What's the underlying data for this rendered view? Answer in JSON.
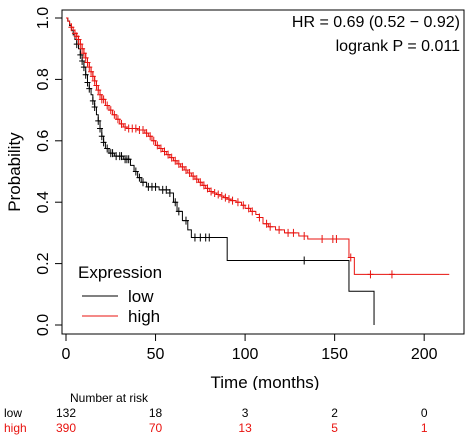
{
  "chart_data": {
    "type": "line",
    "title": "",
    "xlabel": "Time (months)",
    "ylabel": "Probability",
    "xlim": [
      0,
      220
    ],
    "ylim": [
      0,
      1.0
    ],
    "xticks": [
      0,
      50,
      100,
      150,
      200
    ],
    "yticks": [
      0.0,
      0.2,
      0.4,
      0.6,
      0.8,
      1.0
    ],
    "ytick_labels": [
      "0.0",
      "0.2",
      "0.4",
      "0.6",
      "0.8",
      "1.0"
    ],
    "annotations": [
      "HR = 0.69 (0.52 − 0.92)",
      "logrank P = 0.011"
    ],
    "legend": {
      "title": "Expression",
      "placement": "bottom-left"
    },
    "series": [
      {
        "name": "low",
        "color": "#000000",
        "step_points": [
          [
            0,
            1.0
          ],
          [
            1,
            0.99
          ],
          [
            2,
            0.975
          ],
          [
            3,
            0.96
          ],
          [
            4,
            0.945
          ],
          [
            5,
            0.93
          ],
          [
            6,
            0.915
          ],
          [
            7,
            0.9
          ],
          [
            8,
            0.88
          ],
          [
            9,
            0.86
          ],
          [
            10,
            0.84
          ],
          [
            11,
            0.815
          ],
          [
            12,
            0.79
          ],
          [
            13,
            0.77
          ],
          [
            14,
            0.75
          ],
          [
            15,
            0.73
          ],
          [
            16,
            0.71
          ],
          [
            17,
            0.685
          ],
          [
            18,
            0.665
          ],
          [
            19,
            0.64
          ],
          [
            20,
            0.615
          ],
          [
            21,
            0.595
          ],
          [
            22,
            0.575
          ],
          [
            24,
            0.56
          ],
          [
            27,
            0.55
          ],
          [
            32,
            0.54
          ],
          [
            36,
            0.52
          ],
          [
            38,
            0.5
          ],
          [
            40,
            0.48
          ],
          [
            42,
            0.465
          ],
          [
            45,
            0.45
          ],
          [
            52,
            0.44
          ],
          [
            58,
            0.43
          ],
          [
            60,
            0.4
          ],
          [
            62,
            0.37
          ],
          [
            65,
            0.34
          ],
          [
            68,
            0.31
          ],
          [
            70,
            0.285
          ],
          [
            90,
            0.21
          ],
          [
            158,
            0.11
          ],
          [
            172,
            0.0
          ]
        ],
        "end_x": 172,
        "censor_times": [
          6,
          8,
          9,
          10,
          11,
          12,
          13,
          15,
          16,
          18,
          19,
          20,
          21,
          23,
          25,
          26,
          28,
          30,
          31,
          33,
          34,
          35,
          39,
          41,
          43,
          46,
          48,
          50,
          54,
          56,
          58,
          61,
          63,
          67,
          72,
          75,
          78,
          80,
          133
        ]
      },
      {
        "name": "high",
        "color": "#e8130f",
        "step_points": [
          [
            0,
            1.0
          ],
          [
            1,
            0.99
          ],
          [
            2,
            0.98
          ],
          [
            3,
            0.97
          ],
          [
            4,
            0.96
          ],
          [
            5,
            0.95
          ],
          [
            6,
            0.94
          ],
          [
            7,
            0.93
          ],
          [
            8,
            0.915
          ],
          [
            9,
            0.9
          ],
          [
            10,
            0.885
          ],
          [
            11,
            0.87
          ],
          [
            12,
            0.855
          ],
          [
            13,
            0.84
          ],
          [
            14,
            0.825
          ],
          [
            15,
            0.81
          ],
          [
            16,
            0.795
          ],
          [
            17,
            0.78
          ],
          [
            18,
            0.765
          ],
          [
            19,
            0.75
          ],
          [
            20,
            0.735
          ],
          [
            22,
            0.715
          ],
          [
            24,
            0.7
          ],
          [
            26,
            0.685
          ],
          [
            28,
            0.67
          ],
          [
            30,
            0.655
          ],
          [
            32,
            0.645
          ],
          [
            34,
            0.64
          ],
          [
            38,
            0.64
          ],
          [
            40,
            0.635
          ],
          [
            44,
            0.625
          ],
          [
            46,
            0.615
          ],
          [
            48,
            0.6
          ],
          [
            50,
            0.585
          ],
          [
            52,
            0.575
          ],
          [
            54,
            0.565
          ],
          [
            56,
            0.555
          ],
          [
            58,
            0.545
          ],
          [
            60,
            0.535
          ],
          [
            62,
            0.525
          ],
          [
            64,
            0.515
          ],
          [
            66,
            0.505
          ],
          [
            68,
            0.495
          ],
          [
            70,
            0.485
          ],
          [
            72,
            0.475
          ],
          [
            74,
            0.465
          ],
          [
            76,
            0.455
          ],
          [
            78,
            0.445
          ],
          [
            80,
            0.435
          ],
          [
            82,
            0.43
          ],
          [
            84,
            0.425
          ],
          [
            86,
            0.42
          ],
          [
            88,
            0.415
          ],
          [
            90,
            0.41
          ],
          [
            92,
            0.405
          ],
          [
            95,
            0.4
          ],
          [
            98,
            0.39
          ],
          [
            100,
            0.38
          ],
          [
            103,
            0.37
          ],
          [
            106,
            0.36
          ],
          [
            108,
            0.35
          ],
          [
            110,
            0.33
          ],
          [
            113,
            0.32
          ],
          [
            117,
            0.31
          ],
          [
            122,
            0.3
          ],
          [
            130,
            0.29
          ],
          [
            135,
            0.28
          ],
          [
            158,
            0.22
          ],
          [
            161,
            0.165
          ]
        ],
        "end_x": 214,
        "censor_times": [
          3,
          5,
          6,
          7,
          8,
          9,
          10,
          11,
          12,
          13,
          14,
          15,
          16,
          17,
          18,
          19,
          20,
          21,
          23,
          25,
          27,
          29,
          31,
          33,
          35,
          37,
          39,
          41,
          43,
          45,
          47,
          49,
          51,
          53,
          55,
          57,
          59,
          61,
          63,
          65,
          67,
          69,
          71,
          73,
          75,
          77,
          79,
          81,
          83,
          85,
          87,
          89,
          91,
          93,
          96,
          99,
          102,
          104,
          108,
          112,
          114,
          119,
          124,
          127,
          133,
          143,
          149,
          151,
          159,
          170,
          182
        ]
      }
    ]
  },
  "risk_table": {
    "title": "Number at risk",
    "times": [
      0,
      50,
      100,
      150,
      200
    ],
    "rows": [
      {
        "label": "low",
        "color": "#000000",
        "values": [
          "132",
          "18",
          "3",
          "2",
          "0"
        ]
      },
      {
        "label": "high",
        "color": "#e8130f",
        "values": [
          "390",
          "70",
          "13",
          "5",
          "1"
        ]
      }
    ]
  }
}
